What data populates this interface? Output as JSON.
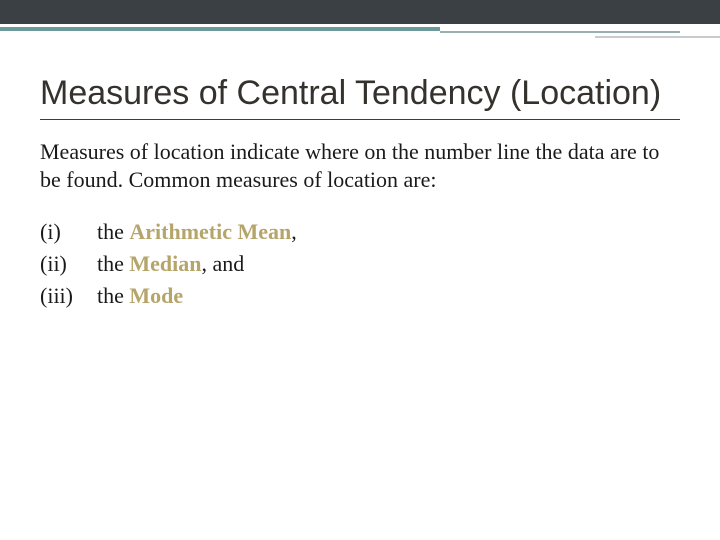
{
  "colors": {
    "top_band": "#3a4044",
    "accent_primary": "#6c9a9a",
    "accent_secondary": "#9aafaf",
    "accent_tertiary": "#c7cbc9",
    "title_text": "#35322d",
    "body_text": "#1a1a1a",
    "highlight": "#b6a56a",
    "background": "#ffffff"
  },
  "typography": {
    "title_font": "Trebuchet MS",
    "title_size_pt": 26,
    "body_font": "Georgia",
    "body_size_pt": 17
  },
  "title": "Measures of Central Tendency (Location)",
  "intro": "Measures of location indicate where on the number line the data are to be found. Common measures of location are:",
  "items": [
    {
      "num": "(i)",
      "pre": "the ",
      "hl": "Arithmetic Mean",
      "post": ","
    },
    {
      "num": "(ii)",
      "pre": "the ",
      "hl": "Median",
      "post": ", and"
    },
    {
      "num": "(iii)",
      "pre": "the ",
      "hl": "Mode",
      "post": ""
    }
  ]
}
